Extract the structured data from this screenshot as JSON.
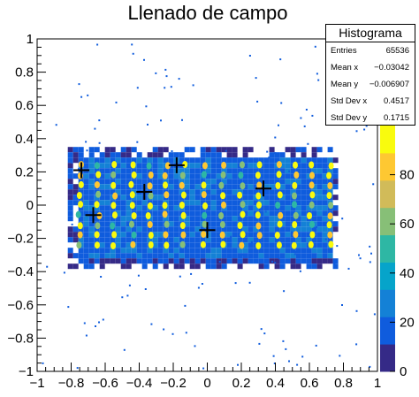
{
  "chart_data": {
    "type": "heatmap",
    "title": "Llenado de campo",
    "xlabel": "",
    "ylabel": "",
    "xlim": [
      -1,
      1
    ],
    "ylim": [
      -1,
      1
    ],
    "x_ticks": [
      -1,
      -0.8,
      -0.6,
      -0.4,
      -0.2,
      0,
      0.2,
      0.4,
      0.6,
      0.8,
      1
    ],
    "x_tick_labels": [
      "−1",
      "−0.8",
      "−0.6",
      "−0.4",
      "−0.2",
      "0",
      "0.2",
      "0.4",
      "0.6",
      "0.8",
      "1"
    ],
    "y_ticks": [
      -1,
      -0.8,
      -0.6,
      -0.4,
      -0.2,
      0,
      0.2,
      0.4,
      0.6,
      0.8,
      1
    ],
    "y_tick_labels": [
      "−1",
      "−0.8",
      "−0.6",
      "−0.4",
      "−0.2",
      "0",
      "0.2",
      "0.4",
      "0.6",
      "0.8",
      "1"
    ],
    "colorbar": {
      "range": [
        0,
        100
      ],
      "ticks": [
        0,
        20,
        40,
        60,
        80
      ],
      "tick_labels": [
        "0",
        "20",
        "40",
        "60",
        "80"
      ],
      "colors": [
        "#352a87",
        "#0f5cdd",
        "#1481d6",
        "#06a4ca",
        "#2eb7a4",
        "#87bf77",
        "#d1bb59",
        "#fec832",
        "#f9fb0e"
      ]
    },
    "region": {
      "x": [
        -0.82,
        0.76
      ],
      "y": [
        -0.37,
        0.35
      ]
    },
    "columns_x": [
      -0.75,
      -0.64,
      -0.55,
      -0.44,
      -0.34,
      -0.24,
      -0.14,
      -0.02,
      0.09,
      0.2,
      0.3,
      0.42,
      0.52,
      0.61,
      0.72
    ],
    "rows_y": [
      -0.24,
      -0.18,
      -0.12,
      -0.06,
      0.0,
      0.06,
      0.12,
      0.18,
      0.24
    ],
    "markers": [
      {
        "x": -0.74,
        "y": 0.21
      },
      {
        "x": -0.67,
        "y": -0.06
      },
      {
        "x": -0.37,
        "y": 0.08
      },
      {
        "x": -0.18,
        "y": 0.24
      },
      {
        "x": 0.0,
        "y": -0.15
      },
      {
        "x": 0.33,
        "y": 0.1
      }
    ],
    "stats": {
      "title": "Histograma",
      "rows": [
        {
          "label": "Entries",
          "value": "65536"
        },
        {
          "label": "Mean x",
          "value": "−0.03042"
        },
        {
          "label": "Mean y",
          "value": "−0.006907"
        },
        {
          "label": "Std Dev x",
          "value": "0.4517"
        },
        {
          "label": "Std Dev y",
          "value": "0.1715"
        }
      ]
    }
  }
}
